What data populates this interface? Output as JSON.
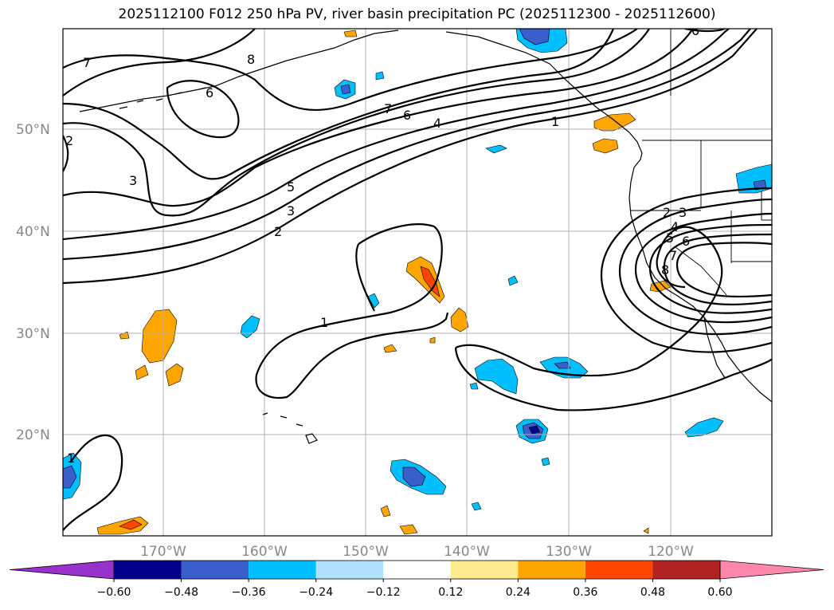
{
  "title": "2025112100 F012 250 hPa PV, river basin precipitation PC (2025112300 - 2025112600)",
  "map": {
    "lat_labels": [
      "50°N",
      "40°N",
      "30°N",
      "20°N"
    ],
    "lon_labels": [
      "170°W",
      "160°W",
      "150°W",
      "140°W",
      "130°W",
      "120°W"
    ],
    "contour_labels": [
      "7",
      "8",
      "6",
      "3",
      "2",
      "1",
      "7",
      "6",
      "4",
      "5",
      "3",
      "2",
      "1",
      "2",
      "3",
      "4",
      "5",
      "6",
      "7",
      "8",
      "6",
      "1"
    ]
  },
  "colorbar": {
    "colors": [
      "#9932cc",
      "#00008b",
      "#3a5fcd",
      "#00bfff",
      "#b0e2ff",
      "#ffffff",
      "#ffeb8f",
      "#ffa500",
      "#ff4500",
      "#b22222",
      "#ff88aa"
    ],
    "tick_labels": [
      "−0.60",
      "−0.48",
      "−0.36",
      "−0.24",
      "−0.12",
      "0.12",
      "0.24",
      "0.36",
      "0.48",
      "0.60"
    ]
  }
}
